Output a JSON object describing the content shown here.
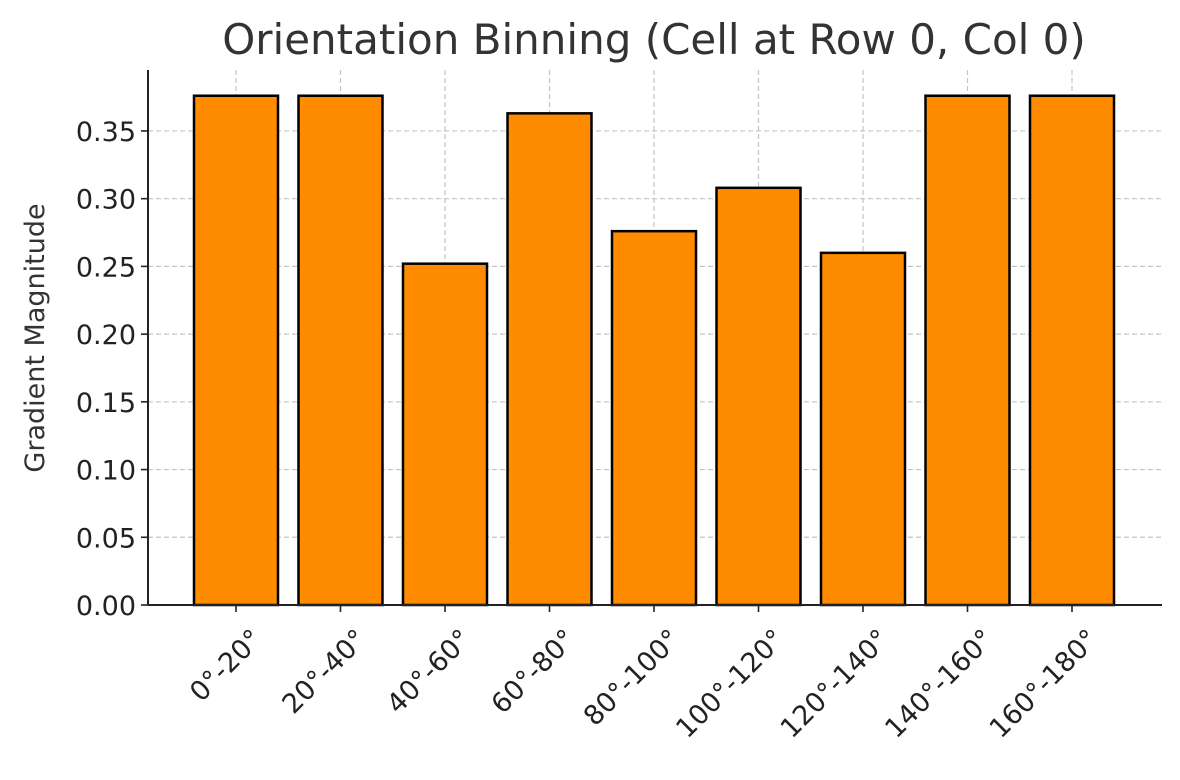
{
  "chart_data": {
    "type": "bar",
    "title": "Orientation Binning (Cell at Row 0, Col 0)",
    "xlabel": "",
    "ylabel": "Gradient Magnitude",
    "categories": [
      "0°-20°",
      "20°-40°",
      "40°-60°",
      "60°-80°",
      "80°-100°",
      "100°-120°",
      "120°-140°",
      "140°-160°",
      "160°-180°"
    ],
    "values": [
      0.376,
      0.376,
      0.252,
      0.363,
      0.276,
      0.308,
      0.26,
      0.376,
      0.376
    ],
    "ylim": [
      0,
      0.395
    ],
    "yticks": [
      "0.00",
      "0.05",
      "0.10",
      "0.15",
      "0.20",
      "0.25",
      "0.30",
      "0.35"
    ],
    "grid": true,
    "bar_color": "#ff8c00",
    "bar_edge_color": "#000000"
  }
}
